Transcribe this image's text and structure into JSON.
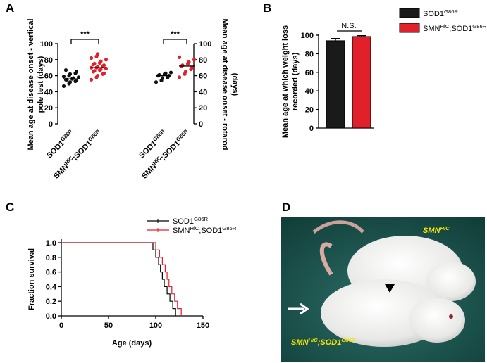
{
  "chart_data": [
    {
      "type": "dot",
      "panel": "A",
      "ylabel": [
        "Mean age at disease onset - vertical",
        "pole test (days)"
      ],
      "y2label": [
        "Mean age at disease onset - rotarod",
        "(days)"
      ],
      "ylim": [
        0,
        100
      ],
      "yticks": [
        0,
        20,
        40,
        60,
        80,
        100
      ],
      "y2lim": [
        0,
        100
      ],
      "y2ticks": [
        0,
        20,
        40,
        60,
        80,
        100
      ],
      "pairs": [
        {
          "annotation": "***",
          "groups": [
            {
              "category": [
                {
                  "t": "SOD1"
                },
                {
                  "t": "G86R",
                  "sup": true
                }
              ],
              "color": "#111111",
              "values": [
                47,
                50,
                52,
                53,
                54,
                55,
                55,
                56,
                57,
                58,
                59,
                60,
                62,
                63,
                65,
                67
              ],
              "mean": 56
            },
            {
              "category": [
                {
                  "t": "SMN"
                },
                {
                  "t": "HiC",
                  "sup": true
                },
                {
                  "t": ";SOD1"
                },
                {
                  "t": "G86R",
                  "sup": true
                }
              ],
              "color": "#e0202a",
              "values": [
                55,
                58,
                60,
                62,
                63,
                65,
                66,
                67,
                68,
                69,
                70,
                70,
                71,
                72,
                73,
                74,
                75,
                76,
                78,
                80,
                82,
                84,
                87
              ],
              "mean": 70
            }
          ]
        },
        {
          "annotation": "***",
          "axis": "y2",
          "groups": [
            {
              "category": [
                {
                  "t": "SOD1"
                },
                {
                  "t": "G86R",
                  "sup": true
                }
              ],
              "color": "#111111",
              "values": [
                52,
                54,
                57,
                58,
                60,
                60,
                61,
                62,
                63,
                64
              ],
              "mean": 60
            },
            {
              "category": [
                {
                  "t": "SMN"
                },
                {
                  "t": "HiC",
                  "sup": true
                },
                {
                  "t": ";SOD1"
                },
                {
                  "t": "G86R",
                  "sup": true
                }
              ],
              "color": "#e0202a",
              "values": [
                58,
                62,
                65,
                68,
                70,
                72,
                73,
                75,
                77,
                80,
                83
              ],
              "mean": 72
            }
          ]
        }
      ]
    },
    {
      "type": "bar",
      "panel": "B",
      "ylabel": [
        "Mean age at which weight loss",
        "recorded (days)"
      ],
      "ylim": [
        0,
        100
      ],
      "yticks": [
        0,
        20,
        40,
        60,
        80,
        100
      ],
      "annotation": "N.S.",
      "series": [
        {
          "name": [
            {
              "t": "SOD1"
            },
            {
              "t": "G86R",
              "sup": true
            }
          ],
          "color": "#1a1a1a",
          "values": [
            94
          ],
          "errors": [
            2.5
          ]
        },
        {
          "name": [
            {
              "t": "SMN"
            },
            {
              "t": "HiC",
              "sup": true
            },
            {
              "t": ";SOD1"
            },
            {
              "t": "G86R",
              "sup": true
            }
          ],
          "color": "#e0202a",
          "values": [
            98.5
          ],
          "errors": [
            1
          ]
        }
      ]
    },
    {
      "type": "line",
      "panel": "C",
      "xlabel": "Age (days)",
      "ylabel": "Fraction survival",
      "xlim": [
        0,
        150
      ],
      "xticks": [
        0,
        50,
        100,
        150
      ],
      "ylim": [
        0,
        1
      ],
      "yticks": [
        {
          "value": 0,
          "label": "0.0"
        },
        0.2,
        0.4,
        0.6,
        0.8,
        {
          "value": 1,
          "label": "1.0"
        }
      ],
      "series": [
        {
          "name": [
            {
              "t": "SOD1"
            },
            {
              "t": "G86R",
              "sup": true
            }
          ],
          "color": "#000000",
          "x": [
            0,
            97,
            97,
            100,
            100,
            103,
            103,
            105,
            105,
            107,
            107,
            109,
            109,
            112,
            112,
            115,
            115,
            118,
            118,
            121,
            121
          ],
          "values": [
            1,
            1,
            0.9,
            0.9,
            0.8,
            0.8,
            0.7,
            0.7,
            0.6,
            0.6,
            0.5,
            0.5,
            0.4,
            0.4,
            0.3,
            0.3,
            0.2,
            0.2,
            0.1,
            0.1,
            0
          ]
        },
        {
          "name": [
            {
              "t": "SMN"
            },
            {
              "t": "HiC",
              "sup": true
            },
            {
              "t": ";SOD1"
            },
            {
              "t": "G86R",
              "sup": true
            }
          ],
          "color": "#e0202a",
          "x": [
            0,
            100,
            100,
            104,
            104,
            107,
            107,
            110,
            110,
            112,
            112,
            114,
            114,
            117,
            117,
            120,
            120,
            123,
            123,
            127,
            127
          ],
          "values": [
            1,
            1,
            0.9,
            0.9,
            0.8,
            0.8,
            0.7,
            0.7,
            0.6,
            0.6,
            0.5,
            0.5,
            0.4,
            0.4,
            0.3,
            0.3,
            0.2,
            0.2,
            0.1,
            0.1,
            0
          ]
        }
      ]
    }
  ],
  "photo": {
    "panel": "D",
    "labels": [
      [
        {
          "t": "SMN"
        },
        {
          "t": "HiC",
          "sup": true
        }
      ],
      [
        {
          "t": "SMN"
        },
        {
          "t": "HiC",
          "sup": true
        },
        {
          "t": ";SOD1"
        },
        {
          "t": "G86R",
          "sup": true
        }
      ]
    ]
  }
}
